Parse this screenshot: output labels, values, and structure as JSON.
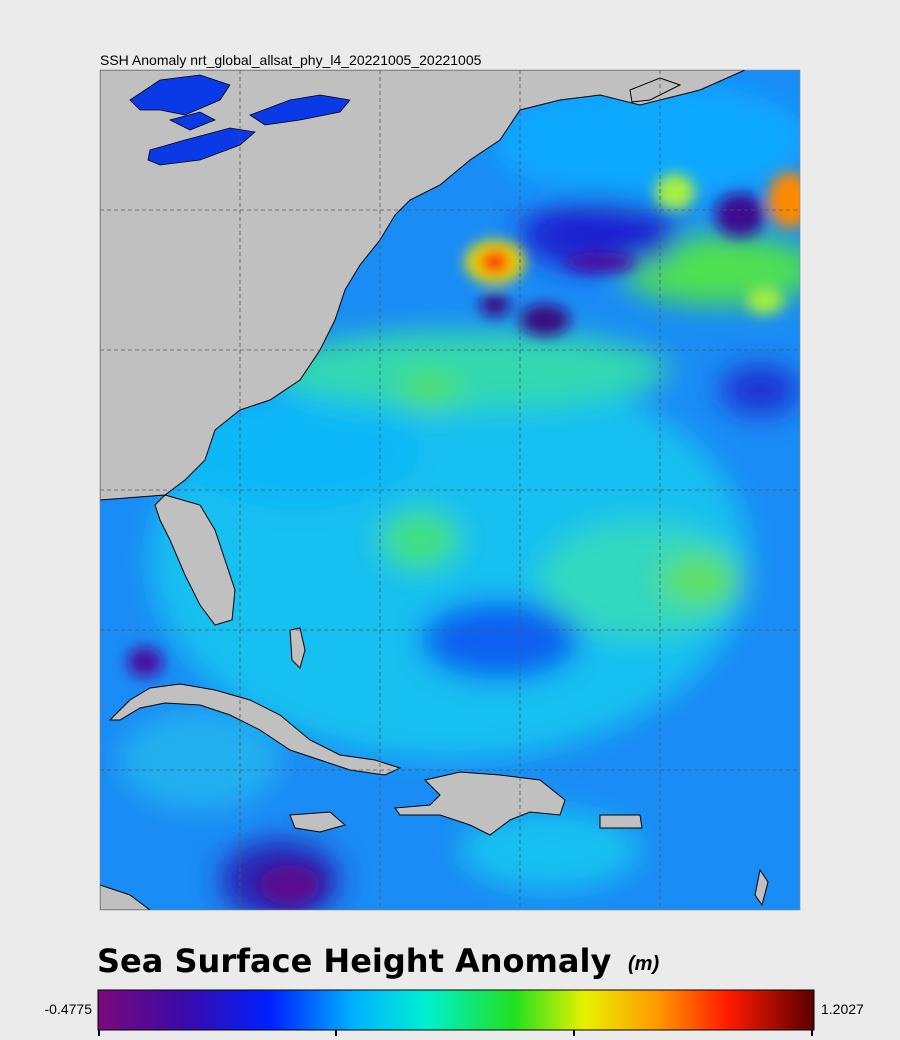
{
  "header": {
    "title": "SSH Anomaly nrt_global_allsat_phy_l4_20221005_20221005"
  },
  "colorbar": {
    "title": "Sea Surface Height Anomaly",
    "unit": "(m)",
    "min": -0.4775,
    "max": 1.2027
  }
}
